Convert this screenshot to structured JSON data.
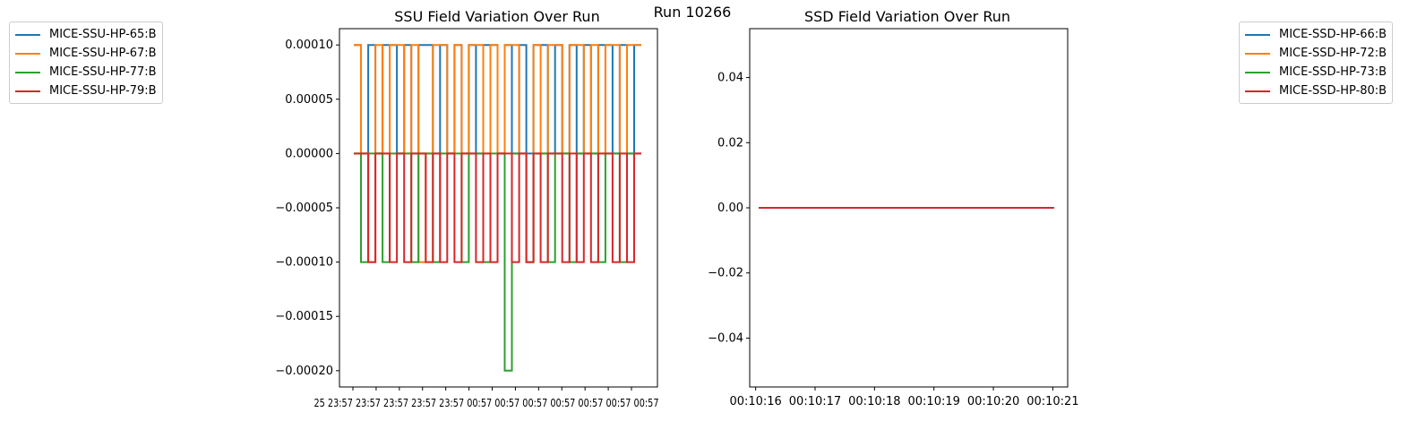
{
  "figure": {
    "suptitle": "Run 10266"
  },
  "colors": {
    "c0": "#1f77b4",
    "c1": "#ff7f0e",
    "c2": "#2ca02c",
    "c3": "#d62728"
  },
  "chart_data": [
    {
      "type": "line",
      "title": "SSU Field Variation Over Run",
      "xlabel": "",
      "ylabel": "",
      "ylim": [
        -0.000215,
        0.000115
      ],
      "yticks": [
        "0.00010",
        "0.00005",
        "0.00000",
        "−0.00005",
        "−0.00010",
        "−0.00015",
        "−0.00020"
      ],
      "ytick_values": [
        0.0001,
        5e-05,
        0,
        -5e-05,
        -0.0001,
        -0.00015,
        -0.0002
      ],
      "xticklabels_raw": "25 23:57 23:57 23:57 23:57 23:57 00:57 00:57 00:57 00:57 00:57 00:57 00:57",
      "xtick_text_overlapped": "25 23:57 23:57 23:57 23:57 23:57 00:57 00:57 00:57 00:57 00:57 00:57 00:57",
      "legend": {
        "placement": "outside-left",
        "entries": [
          "MICE-SSU-HP-65:B",
          "MICE-SSU-HP-67:B",
          "MICE-SSU-HP-77:B",
          "MICE-SSU-HP-79:B"
        ]
      },
      "series": [
        {
          "name": "MICE-SSU-HP-65:B",
          "color": "#1f77b4",
          "values": [
            0.0001,
            0,
            0.0001,
            0,
            0.0001,
            0.0001,
            0,
            0.0001,
            0,
            0.0001,
            0.0001,
            0,
            0.0001,
            0,
            0.0001,
            0,
            0.0001,
            0,
            0.0001,
            0.0001,
            0,
            0.0001,
            0,
            0.0001,
            0,
            0.0001,
            0.0001,
            0,
            0.0001,
            0,
            0.0001,
            0,
            0.0001,
            0,
            0.0001,
            0.0001,
            0,
            0.0001,
            0,
            0.0001
          ]
        },
        {
          "name": "MICE-SSU-HP-67:B",
          "color": "#ff7f0e",
          "values": [
            0.0001,
            0,
            -0.0001,
            0.0001,
            0,
            0.0001,
            0.0001,
            0,
            0.0001,
            -0.0001,
            0,
            0.0001,
            0.0001,
            0,
            0.0001,
            0,
            0.0001,
            0.0001,
            0,
            0.0001,
            0,
            0.0001,
            0.0001,
            0,
            -0.0001,
            0.0001,
            0,
            0.0001,
            0.0001,
            0,
            0.0001,
            0.0001,
            0,
            0.0001,
            0,
            0.0001,
            0.0001,
            0,
            0.0001,
            0.0001
          ]
        },
        {
          "name": "MICE-SSU-HP-77:B",
          "color": "#2ca02c",
          "values": [
            0,
            -0.0001,
            0,
            0,
            -0.0001,
            0,
            0,
            0,
            -0.0001,
            0,
            0,
            -0.0001,
            0,
            0,
            0,
            -0.0001,
            0,
            0,
            -0.0001,
            0,
            0,
            -0.0002,
            0,
            0,
            -0.0001,
            0,
            0,
            -0.0001,
            0,
            0,
            -0.0001,
            0,
            0,
            0,
            -0.0001,
            0,
            0,
            -0.0001,
            0,
            0
          ]
        },
        {
          "name": "MICE-SSU-HP-79:B",
          "color": "#d62728",
          "values": [
            0,
            0,
            -0.0001,
            0,
            0,
            -0.0001,
            0,
            -0.0001,
            0,
            0,
            -0.0001,
            0,
            -0.0001,
            0,
            -0.0001,
            0,
            0,
            -0.0001,
            0,
            -0.0001,
            0,
            0,
            -0.0001,
            0,
            -0.0001,
            0,
            -0.0001,
            0,
            0,
            -0.0001,
            0,
            -0.0001,
            0,
            -0.0001,
            0,
            0,
            -0.0001,
            0,
            -0.0001,
            0
          ]
        }
      ]
    },
    {
      "type": "line",
      "title": "SSD Field Variation Over Run",
      "xlabel": "",
      "ylabel": "",
      "ylim": [
        -0.055,
        0.055
      ],
      "yticks": [
        "0.04",
        "0.02",
        "0.00",
        "−0.02",
        "−0.04"
      ],
      "ytick_values": [
        0.04,
        0.02,
        0,
        -0.02,
        -0.04
      ],
      "xticks": [
        "00:10:16",
        "00:10:17",
        "00:10:18",
        "00:10:19",
        "00:10:20",
        "00:10:21"
      ],
      "xlim_seconds": [
        15.9,
        21.25
      ],
      "legend": {
        "placement": "outside-right",
        "entries": [
          "MICE-SSD-HP-66:B",
          "MICE-SSD-HP-72:B",
          "MICE-SSD-HP-73:B",
          "MICE-SSD-HP-80:B"
        ]
      },
      "x_seconds": [
        16.05,
        21.02
      ],
      "series": [
        {
          "name": "MICE-SSD-HP-66:B",
          "color": "#1f77b4",
          "values": [
            0,
            0
          ]
        },
        {
          "name": "MICE-SSD-HP-72:B",
          "color": "#ff7f0e",
          "values": [
            0,
            0
          ]
        },
        {
          "name": "MICE-SSD-HP-73:B",
          "color": "#2ca02c",
          "values": [
            0,
            0
          ]
        },
        {
          "name": "MICE-SSD-HP-80:B",
          "color": "#d62728",
          "values": [
            0,
            0
          ]
        }
      ]
    }
  ]
}
